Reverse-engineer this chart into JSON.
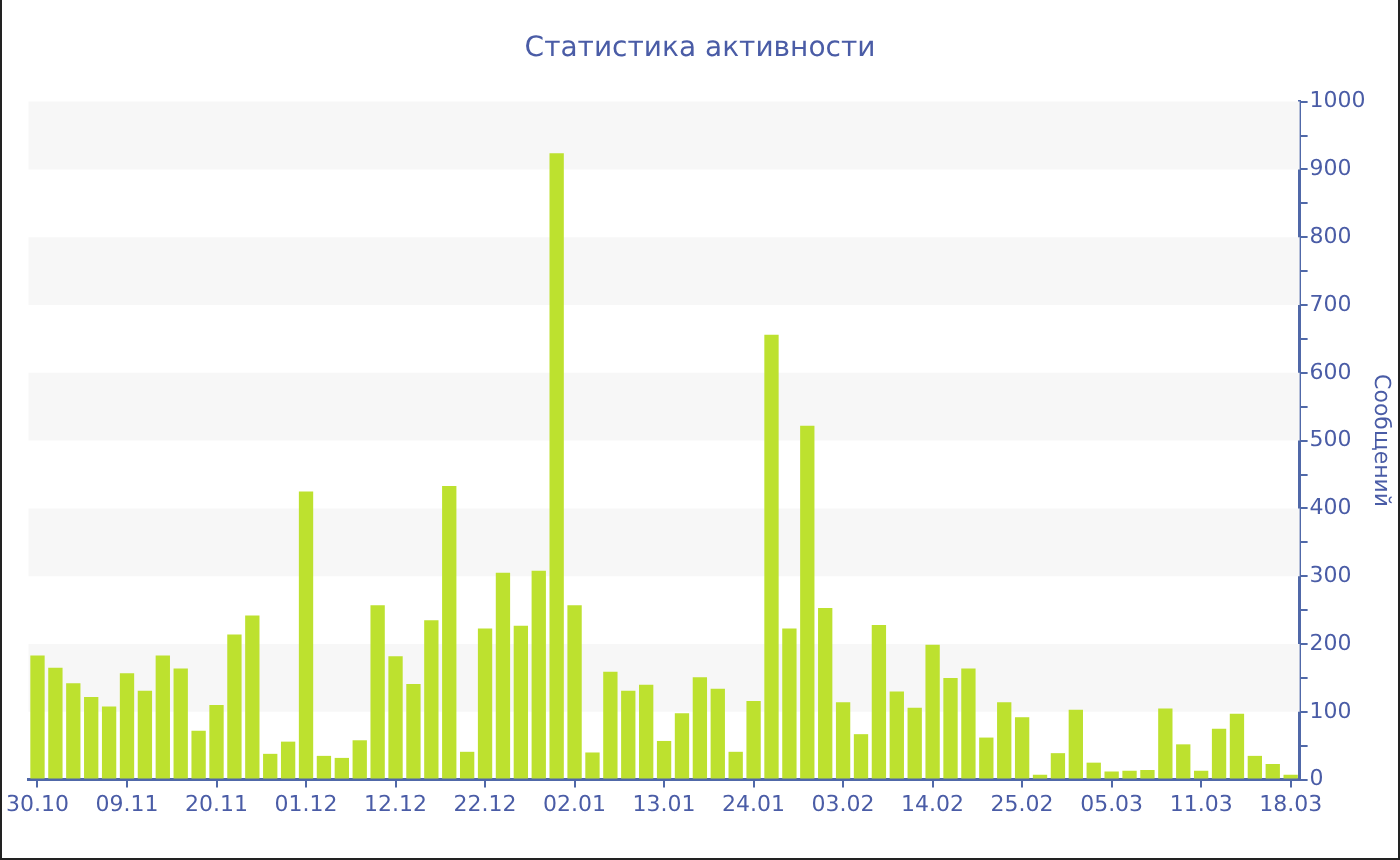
{
  "chart_data": {
    "type": "bar",
    "title": "Статистика активности",
    "ylabel": "Сообщений",
    "categories": [
      "30.10",
      null,
      null,
      null,
      null,
      "09.11",
      null,
      null,
      null,
      null,
      "20.11",
      null,
      null,
      null,
      null,
      "01.12",
      null,
      null,
      null,
      null,
      "12.12",
      null,
      null,
      null,
      null,
      "22.12",
      null,
      null,
      null,
      null,
      "02.01",
      null,
      null,
      null,
      null,
      "13.01",
      null,
      null,
      null,
      null,
      "24.01",
      null,
      null,
      null,
      null,
      "03.02",
      null,
      null,
      null,
      null,
      "14.02",
      null,
      null,
      null,
      null,
      "25.02",
      null,
      null,
      null,
      null,
      "05.03",
      null,
      null,
      null,
      null,
      "11.03",
      null,
      null,
      null,
      null,
      "18.03"
    ],
    "values": [
      183,
      165,
      142,
      122,
      108,
      157,
      131,
      183,
      164,
      72,
      110,
      214,
      242,
      38,
      56,
      425,
      35,
      32,
      58,
      257,
      182,
      141,
      235,
      433,
      41,
      223,
      305,
      227,
      308,
      924,
      257,
      40,
      159,
      131,
      140,
      57,
      98,
      151,
      134,
      41,
      116,
      656,
      223,
      522,
      253,
      114,
      67,
      228,
      130,
      106,
      199,
      150,
      164,
      62,
      114,
      92,
      7,
      39,
      103,
      25,
      12,
      13,
      14,
      105,
      52,
      13,
      75,
      97,
      35,
      23,
      7
    ],
    "color": "#bde12f",
    "ylim": [
      0,
      1000
    ],
    "yticks": [
      0,
      {
        "value": 50,
        "label": null
      },
      100,
      {
        "value": 150,
        "label": null
      },
      200,
      {
        "value": 250,
        "label": null
      },
      300,
      {
        "value": 350,
        "label": null
      },
      400,
      {
        "value": 450,
        "label": null
      },
      500,
      {
        "value": 550,
        "label": null
      },
      600,
      {
        "value": 650,
        "label": null
      },
      700,
      {
        "value": 750,
        "label": null
      },
      800,
      {
        "value": 850,
        "label": null
      },
      900,
      {
        "value": 950,
        "label": null
      },
      1000
    ],
    "bands": [
      {
        "axis": "y",
        "from": 100,
        "to": 200,
        "color": "#f7f7f7"
      },
      {
        "axis": "y",
        "from": 300,
        "to": 400,
        "color": "#f7f7f7"
      },
      {
        "axis": "y",
        "from": 500,
        "to": 600,
        "color": "#f7f7f7"
      },
      {
        "axis": "y",
        "from": 700,
        "to": 800,
        "color": "#f7f7f7"
      },
      {
        "axis": "y",
        "from": 900,
        "to": 1000,
        "color": "#f7f7f7"
      }
    ],
    "grid": false,
    "legend": false
  }
}
